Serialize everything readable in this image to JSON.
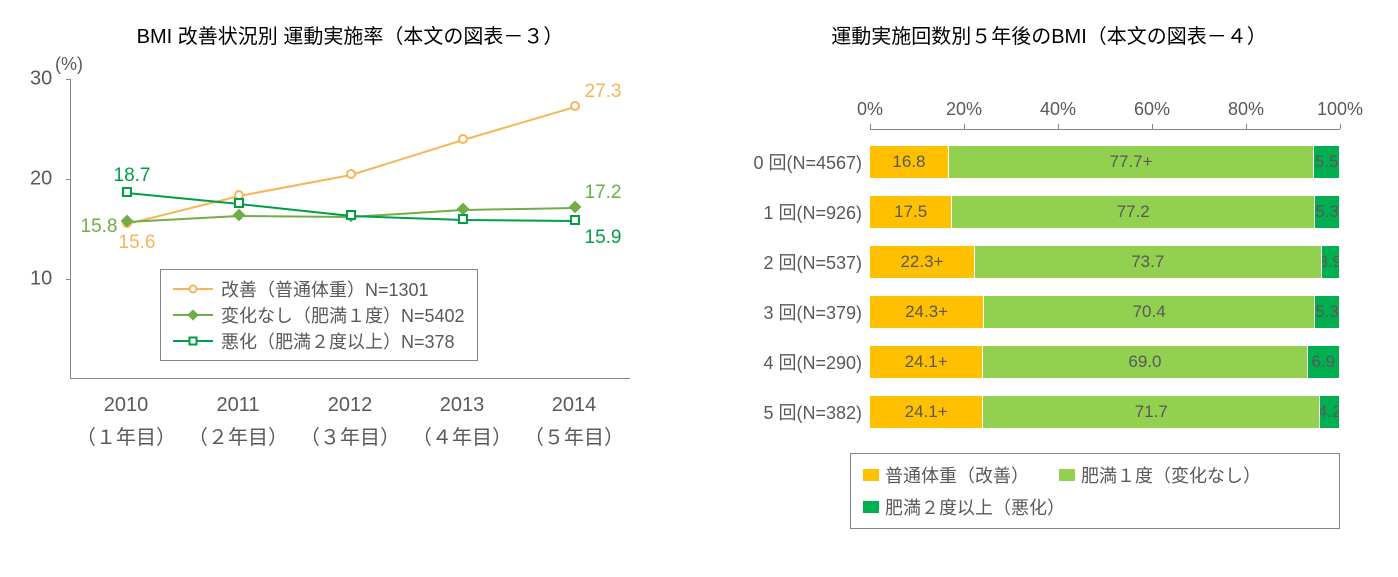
{
  "lineChart": {
    "title": "BMI 改善状況別 運動実施率（本文の図表－３）",
    "yAxisUnit": "(%)",
    "ylim": [
      0,
      30
    ],
    "yticks": [
      10,
      20,
      30
    ],
    "xCategories": [
      "2010",
      "2011",
      "2012",
      "2013",
      "2014"
    ],
    "xSubLabels": [
      "（１年目）",
      "（２年目）",
      "（３年目）",
      "（４年目）",
      "（５年目）"
    ],
    "axis_color": "#868686",
    "tick_font_color": "#595959",
    "tick_fontsize": 20,
    "series": [
      {
        "name": "改善（普通体重）N=1301",
        "values": [
          15.6,
          18.4,
          20.5,
          24.0,
          27.3
        ],
        "color": "#f6b556",
        "marker": "circle",
        "startLabel": "15.6",
        "startLabelColor": "#f6b556",
        "startLabelPos": "below",
        "endLabel": "27.3",
        "endLabelColor": "#f6b556"
      },
      {
        "name": "変化なし（肥満１度）N=5402",
        "values": [
          15.8,
          16.4,
          16.3,
          17.0,
          17.2
        ],
        "color": "#70ad47",
        "marker": "diamond",
        "startLabel": "15.8",
        "startLabelColor": "#70ad47",
        "startLabelPos": "left",
        "endLabel": "17.2",
        "endLabelColor": "#70ad47"
      },
      {
        "name": "悪化（肥満２度以上）N=378",
        "values": [
          18.7,
          17.6,
          16.4,
          16.0,
          15.9
        ],
        "color": "#009e47",
        "marker": "square",
        "startLabel": "18.7",
        "startLabelColor": "#009e47",
        "startLabelPos": "above",
        "endLabel": "15.9",
        "endLabelColor": "#009e47"
      }
    ]
  },
  "barChart": {
    "title": "運動実施回数別５年後のBMI（本文の図表－４）",
    "xlim": [
      0,
      100
    ],
    "xticks": [
      "0%",
      "20%",
      "40%",
      "60%",
      "80%",
      "100%"
    ],
    "axis_color": "#868686",
    "tick_font_color": "#595959",
    "categories": [
      {
        "label": "0 回(N=4567)",
        "segs": [
          {
            "v": 16.8,
            "t": "16.8"
          },
          {
            "v": 77.7,
            "t": "77.7+"
          },
          {
            "v": 5.5,
            "t": "5.5"
          }
        ]
      },
      {
        "label": "1 回(N=926)",
        "segs": [
          {
            "v": 17.5,
            "t": "17.5"
          },
          {
            "v": 77.2,
            "t": "77.2"
          },
          {
            "v": 5.3,
            "t": "5.3"
          }
        ]
      },
      {
        "label": "2 回(N=537)",
        "segs": [
          {
            "v": 22.3,
            "t": "22.3+"
          },
          {
            "v": 73.7,
            "t": "73.7"
          },
          {
            "v": 3.9,
            "t": "3.9"
          }
        ]
      },
      {
        "label": "3 回(N=379)",
        "segs": [
          {
            "v": 24.3,
            "t": "24.3+"
          },
          {
            "v": 70.4,
            "t": "70.4"
          },
          {
            "v": 5.3,
            "t": "5.3"
          }
        ]
      },
      {
        "label": "4 回(N=290)",
        "segs": [
          {
            "v": 24.1,
            "t": "24.1+"
          },
          {
            "v": 69.0,
            "t": "69.0"
          },
          {
            "v": 6.9,
            "t": "6.9"
          }
        ]
      },
      {
        "label": "5 回(N=382)",
        "segs": [
          {
            "v": 24.1,
            "t": "24.1+"
          },
          {
            "v": 71.7,
            "t": "71.7"
          },
          {
            "v": 4.2,
            "t": "4.2"
          }
        ]
      }
    ],
    "segColors": [
      "#ffc000",
      "#92d050",
      "#00b050"
    ],
    "segBorder": "#ffffff",
    "legend": [
      {
        "label": "普通体重（改善）",
        "color": "#ffc000"
      },
      {
        "label": "肥満１度（変化なし）",
        "color": "#92d050"
      },
      {
        "label": "肥満２度以上（悪化）",
        "color": "#00b050"
      }
    ],
    "value_font_color": "#595959"
  }
}
